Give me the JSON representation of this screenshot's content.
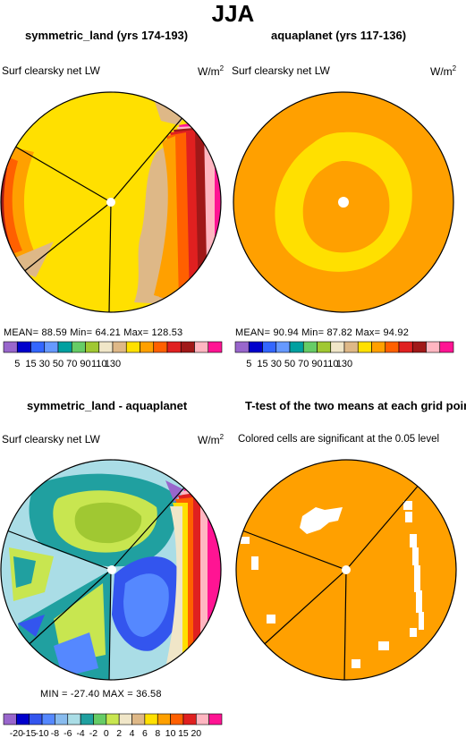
{
  "figure": {
    "title": "JJA"
  },
  "panels": {
    "p1": {
      "title": "symmetric_land (yrs 174-193)",
      "left_label": "Surf clearsky net LW",
      "units": "W/m",
      "units_sup": "2",
      "stats": "MEAN=   88.59   Min=   64.21   Max=  128.53"
    },
    "p2": {
      "title": "aquaplanet (yrs 117-136)",
      "left_label": "Surf clearsky net LW",
      "units": "W/m",
      "units_sup": "2",
      "stats": "MEAN=   90.94   Min=   87.82   Max=   94.92"
    },
    "p3": {
      "title": "symmetric_land - aquaplanet",
      "left_label": "Surf clearsky net LW",
      "units": "W/m",
      "units_sup": "2",
      "stats": "MIN =  -27.40   MAX =   36.58"
    },
    "p4": {
      "title": "T-test of the two means at each grid point",
      "subtitle": "Colored cells are significant at the 0.05 level"
    }
  },
  "chart_data": [
    {
      "type": "heatmap",
      "title": "symmetric_land (yrs 174-193)",
      "variable": "Surf clearsky net LW",
      "units": "W/m2",
      "projection": "polar",
      "stats": {
        "mean": 88.59,
        "min": 64.21,
        "max": 128.53
      },
      "colorbar": {
        "levels": [
          5,
          15,
          30,
          50,
          70,
          90,
          110,
          130
        ],
        "colors": [
          "#9966cc",
          "#0000cc",
          "#3366ff",
          "#6699ff",
          "#00a0a0",
          "#66cc66",
          "#a0c832",
          "#f0e6c8",
          "#deb887",
          "#ffe000",
          "#ffa000",
          "#ff6000",
          "#e02020",
          "#a01818",
          "#ffb6c1",
          "#ff1493"
        ]
      }
    },
    {
      "type": "heatmap",
      "title": "aquaplanet (yrs 117-136)",
      "variable": "Surf clearsky net LW",
      "units": "W/m2",
      "projection": "polar",
      "stats": {
        "mean": 90.94,
        "min": 87.82,
        "max": 94.92
      },
      "colorbar": {
        "levels": [
          5,
          15,
          30,
          50,
          70,
          90,
          110,
          130
        ],
        "colors": [
          "#9966cc",
          "#0000cc",
          "#3366ff",
          "#6699ff",
          "#00a0a0",
          "#66cc66",
          "#a0c832",
          "#f0e6c8",
          "#deb887",
          "#ffe000",
          "#ffa000",
          "#ff6000",
          "#e02020",
          "#a01818",
          "#ffb6c1",
          "#ff1493"
        ]
      }
    },
    {
      "type": "heatmap",
      "title": "symmetric_land - aquaplanet",
      "variable": "Surf clearsky net LW",
      "units": "W/m2",
      "projection": "polar",
      "stats": {
        "min": -27.4,
        "max": 36.58
      },
      "colorbar": {
        "levels": [
          -20,
          -15,
          -10,
          -8,
          -6,
          -4,
          -2,
          0,
          2,
          4,
          6,
          8,
          10,
          15,
          20
        ],
        "level_labels": [
          "-20",
          "-15",
          "-10",
          "-8",
          "-6",
          "-4",
          "-2",
          "0",
          "2",
          "4",
          "6",
          "8",
          "10",
          "15",
          "20"
        ],
        "colors": [
          "#9966cc",
          "#0000cc",
          "#3355ee",
          "#5588ff",
          "#88bbee",
          "#aadde6",
          "#20a0a0",
          "#66cc66",
          "#c8e650",
          "#f0e6c8",
          "#deb887",
          "#ffe000",
          "#ffa000",
          "#ff6000",
          "#e02020",
          "#ffb6c1",
          "#ff1493"
        ]
      }
    },
    {
      "type": "heatmap",
      "title": "T-test of the two means at each grid point",
      "subtitle": "Colored cells are significant at the 0.05 level",
      "projection": "polar",
      "colors": {
        "significant": "#ffa000",
        "not_significant": "#ffffff"
      }
    }
  ]
}
